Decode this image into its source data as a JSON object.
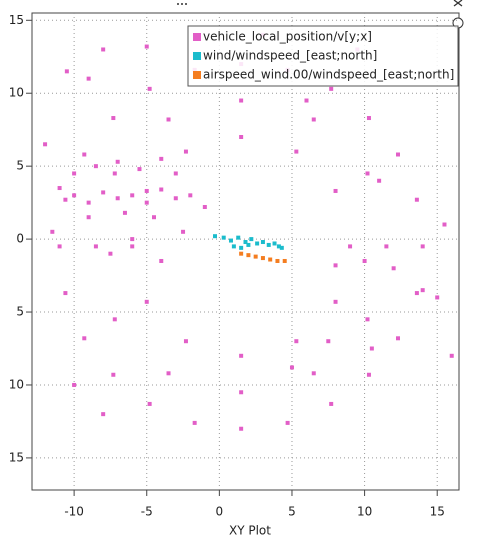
{
  "chart_data": {
    "type": "scatter",
    "title": "XY Plot",
    "xlim": [
      -12.9,
      16.5
    ],
    "ylim": [
      -17.2,
      15.5
    ],
    "xticks": [
      -10,
      -5,
      0,
      5,
      10,
      15
    ],
    "yticks": [
      15,
      10,
      5,
      0,
      {
        "value": -5,
        "label": "5"
      },
      {
        "value": -10,
        "label": "10"
      },
      {
        "value": -15,
        "label": "15"
      }
    ],
    "grid": true,
    "legend": "top-right",
    "series": [
      {
        "name": "vehicle_local_position/v[y;x]",
        "color": "#e25ec7",
        "x": [
          14,
          12.3,
          7.7,
          1.5,
          -4.8,
          -9.3,
          -11,
          -9.3,
          -4.8,
          1.5,
          7.7,
          12.3,
          11.5,
          10.2,
          6.5,
          1.5,
          -3.5,
          -7.2,
          -8.5,
          -7.2,
          -3.5,
          1.5,
          6.5,
          10.2,
          13.6,
          10.3,
          4.7,
          -1.7,
          -7.3,
          -10.6,
          -10.6,
          -7.3,
          -1.7,
          4.7,
          10.3,
          13.6,
          9,
          8,
          5.3,
          1.5,
          -2.3,
          -5,
          -6,
          -5,
          -2.3,
          1.5,
          5.3,
          8,
          -11,
          -10,
          -9,
          -8,
          -7,
          -6,
          -5,
          -4,
          -3,
          -2,
          -1,
          -8.5,
          -7,
          -5.5,
          -4,
          -3,
          -10,
          -9,
          -6.5,
          -4.5,
          -2.5,
          -6,
          -7.5,
          -4,
          -12,
          -11.5,
          8,
          10,
          12,
          14,
          15,
          16,
          15.5,
          11,
          9.5,
          6,
          -9,
          -10.5,
          -8,
          -5,
          3,
          -10,
          -8,
          5,
          7.5,
          10.5
        ],
        "values": [
          -0.5,
          5.8,
          10.3,
          12,
          10.3,
          5.8,
          -0.5,
          -6.8,
          -11.3,
          -13,
          -11.3,
          -6.8,
          -0.5,
          4.5,
          8.2,
          9.5,
          8.2,
          4.5,
          -0.5,
          -5.5,
          -9.2,
          -10.5,
          -9.2,
          -5.5,
          2.7,
          8.3,
          11.6,
          11.6,
          8.3,
          2.7,
          -3.7,
          -9.3,
          -12.6,
          -12.6,
          -9.3,
          -3.7,
          -0.5,
          3.3,
          6,
          7,
          6,
          3.3,
          -0.5,
          -4.3,
          -7,
          -8,
          -7,
          -4.3,
          3.5,
          3,
          2.5,
          3.2,
          2.8,
          3,
          2.5,
          3.4,
          2.8,
          3,
          2.2,
          5,
          5.3,
          4.8,
          5.5,
          4.5,
          4.5,
          1.5,
          1.8,
          1.5,
          0.5,
          0,
          -1,
          -1.5,
          6.5,
          0.5,
          -1.8,
          -1.5,
          -2,
          -3.5,
          -4,
          -8,
          1,
          4,
          13,
          9.5,
          11,
          11.5,
          13,
          13.2,
          14,
          -10,
          -12,
          -8.8,
          -7,
          -7.5
        ]
      },
      {
        "name": "wind/windspeed_[east;north]",
        "color": "#1bbccc",
        "x": [
          -0.3,
          0.3,
          0.8,
          1.3,
          1.8,
          2.2,
          2.6,
          3,
          3.4,
          3.8,
          4.1,
          4.3,
          1,
          1.5,
          2
        ],
        "values": [
          0.2,
          0.1,
          -0.1,
          0.1,
          -0.2,
          0,
          -0.3,
          -0.2,
          -0.4,
          -0.3,
          -0.5,
          -0.6,
          -0.5,
          -0.6,
          -0.4
        ]
      },
      {
        "name": "airspeed_wind.00/windspeed_[east;north]",
        "color": "#f47d20",
        "x": [
          1.5,
          2,
          2.5,
          3,
          3.5,
          4,
          4.5
        ],
        "values": [
          -1,
          -1.1,
          -1.2,
          -1.3,
          -1.4,
          -1.5,
          -1.5
        ]
      }
    ]
  }
}
